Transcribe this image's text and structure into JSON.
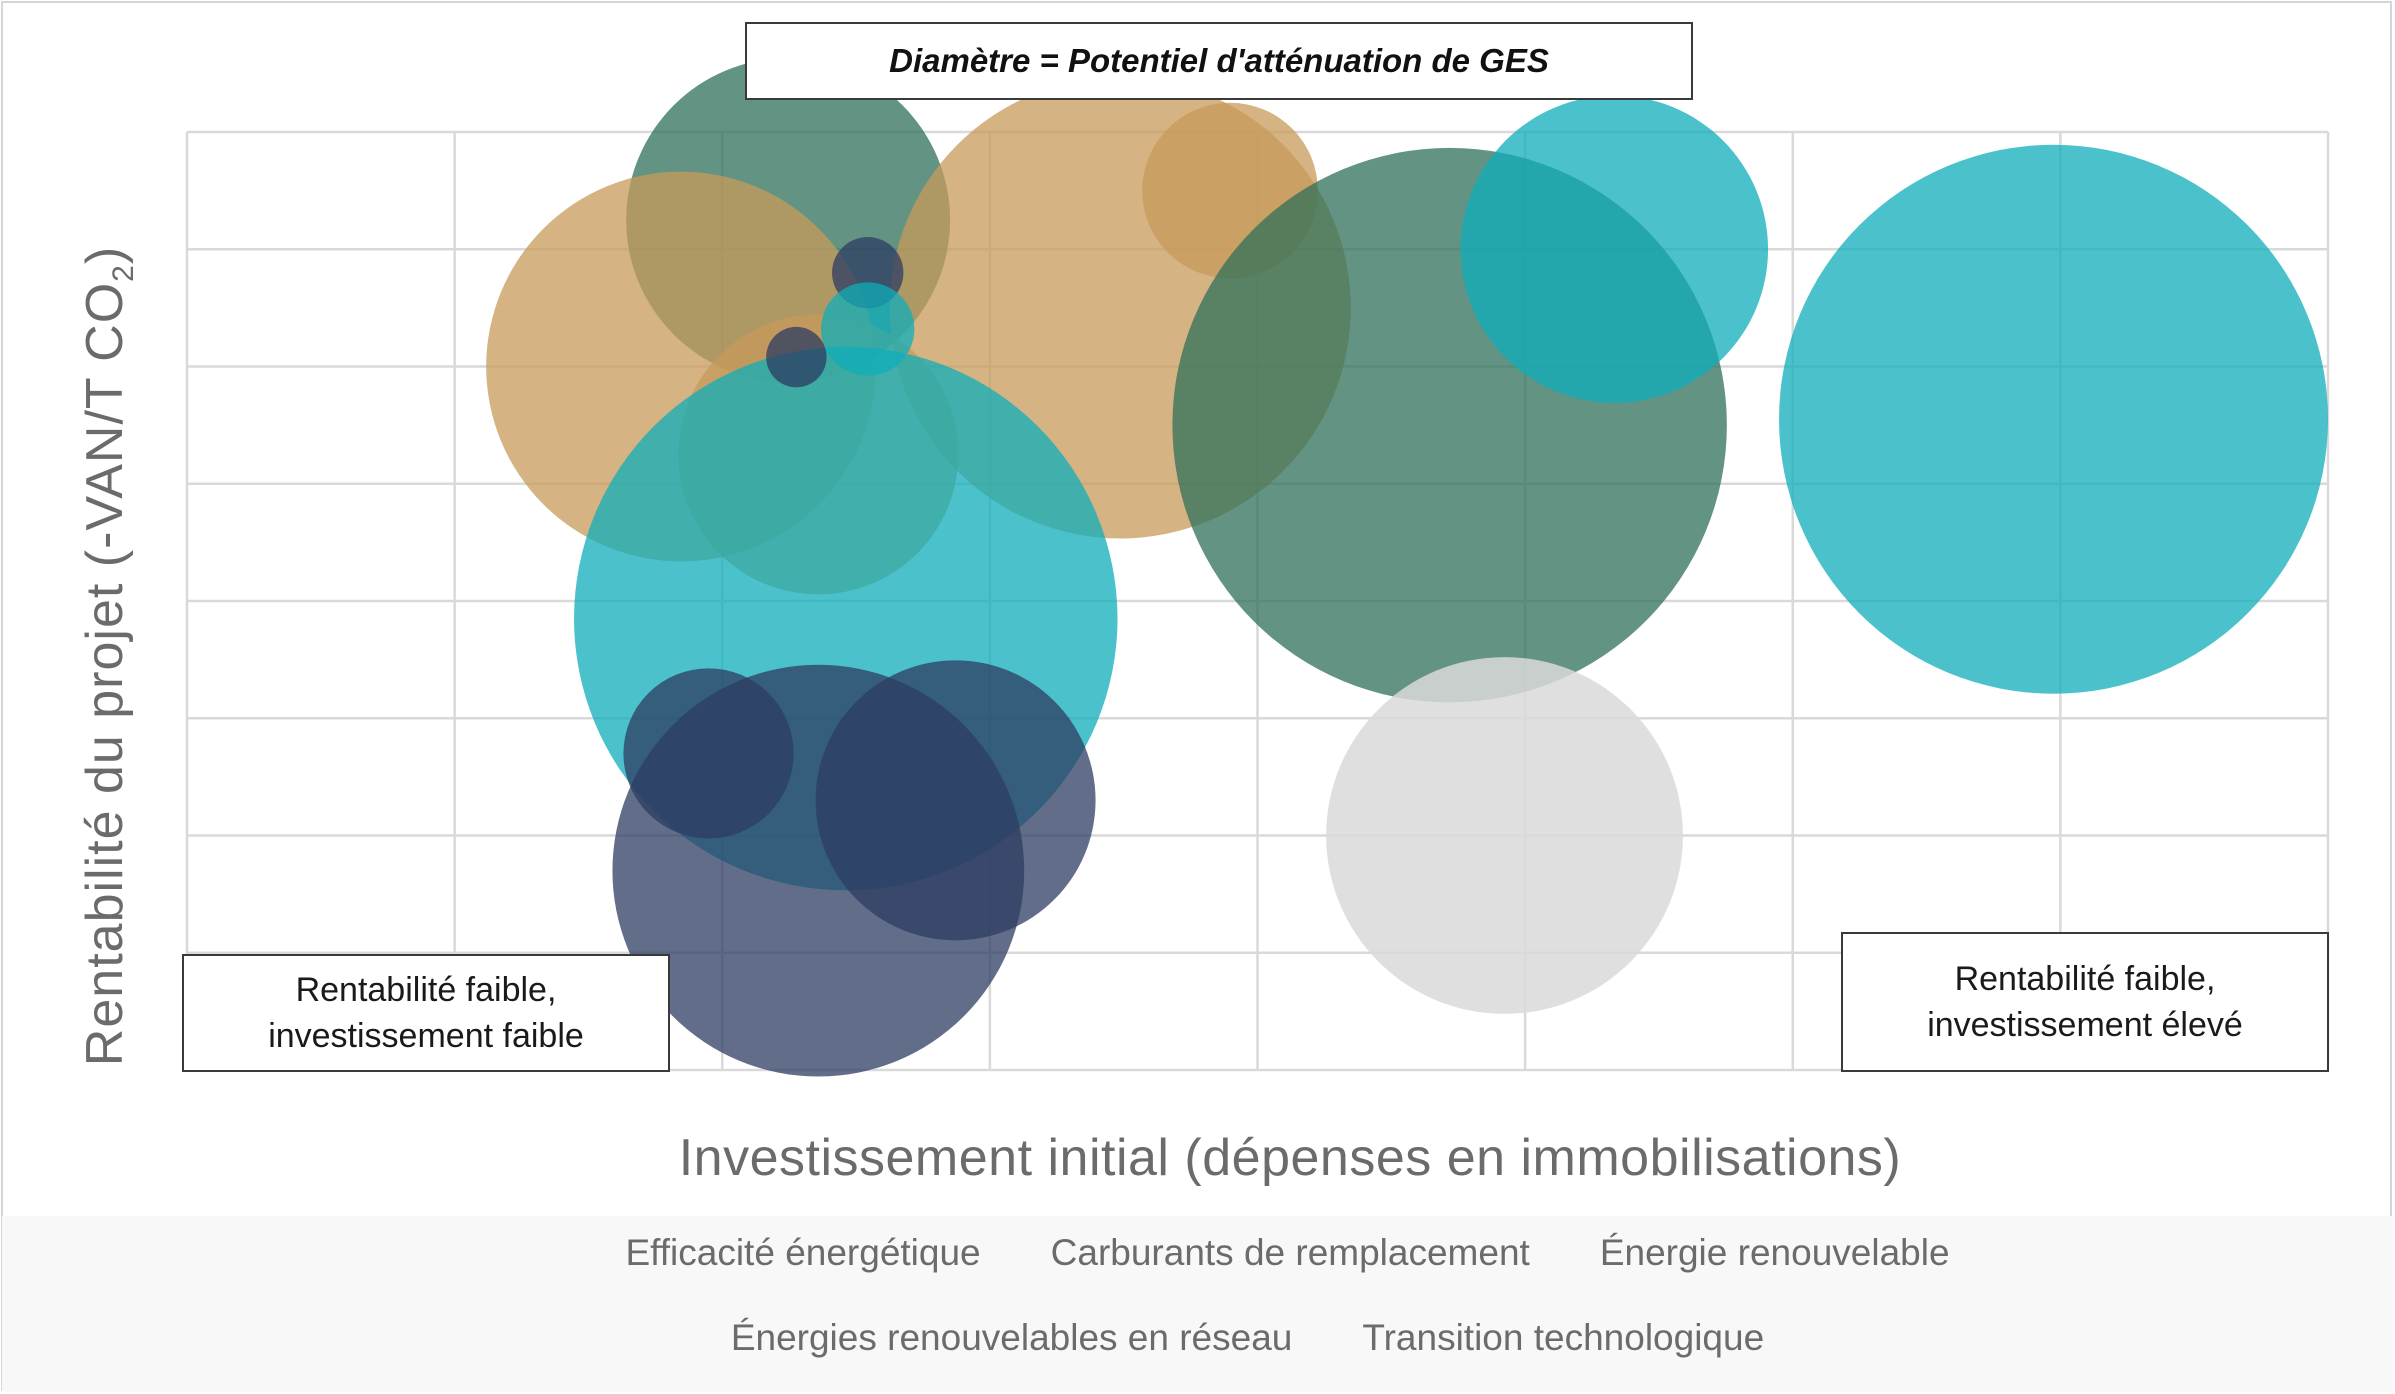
{
  "chart_data": {
    "type": "bubble",
    "title": "Diamètre = Potentiel d'atténuation de GES",
    "xlabel": "Investissement initial (dépenses en immobilisations)",
    "ylabel_main": "Rentabilité du projet (-VAN/T CO",
    "ylabel_sub": "2",
    "ylabel_end": ")",
    "xlim": [
      0,
      780
    ],
    "ylim": [
      0,
      800
    ],
    "grid": true,
    "legend": "bottom",
    "annotations": {
      "bottom_left": [
        "Rentabilité faible,",
        "investissement faible"
      ],
      "bottom_right": [
        "Rentabilité faible,",
        "investissement élevé"
      ]
    },
    "series": [
      {
        "name": "Efficacité énergétique",
        "color": "#2c3c61"
      },
      {
        "name": "Carburants de remplacement",
        "color": "#c7995a"
      },
      {
        "name": "Énergie renouvelable",
        "color": "#0fadb9"
      },
      {
        "name": "Énergies renouvelables en réseau",
        "color": "#2f705a"
      },
      {
        "name": "Transition technologique",
        "color": "#d9d9d9"
      }
    ],
    "points": [
      {
        "series": 3,
        "x": 219,
        "y": 725,
        "size": 118
      },
      {
        "series": 1,
        "x": 380,
        "y": 750,
        "size": 64
      },
      {
        "series": 1,
        "x": 340,
        "y": 650,
        "size": 168
      },
      {
        "series": 3,
        "x": 460,
        "y": 550,
        "size": 202
      },
      {
        "series": 2,
        "x": 520,
        "y": 700,
        "size": 112
      },
      {
        "series": 2,
        "x": 680,
        "y": 555,
        "size": 200
      },
      {
        "series": 1,
        "x": 180,
        "y": 600,
        "size": 142
      },
      {
        "series": 1,
        "x": 230,
        "y": 525,
        "size": 102
      },
      {
        "series": 2,
        "x": 240,
        "y": 385,
        "size": 198
      },
      {
        "series": 0,
        "x": 248,
        "y": 680,
        "size": 26
      },
      {
        "series": 2,
        "x": 248,
        "y": 632,
        "size": 34
      },
      {
        "series": 0,
        "x": 222,
        "y": 608,
        "size": 22
      },
      {
        "series": 0,
        "x": 190,
        "y": 270,
        "size": 62
      },
      {
        "series": 0,
        "x": 280,
        "y": 230,
        "size": 102
      },
      {
        "series": 0,
        "x": 230,
        "y": 170,
        "size": 150
      },
      {
        "series": 4,
        "x": 480,
        "y": 200,
        "size": 130
      }
    ]
  }
}
